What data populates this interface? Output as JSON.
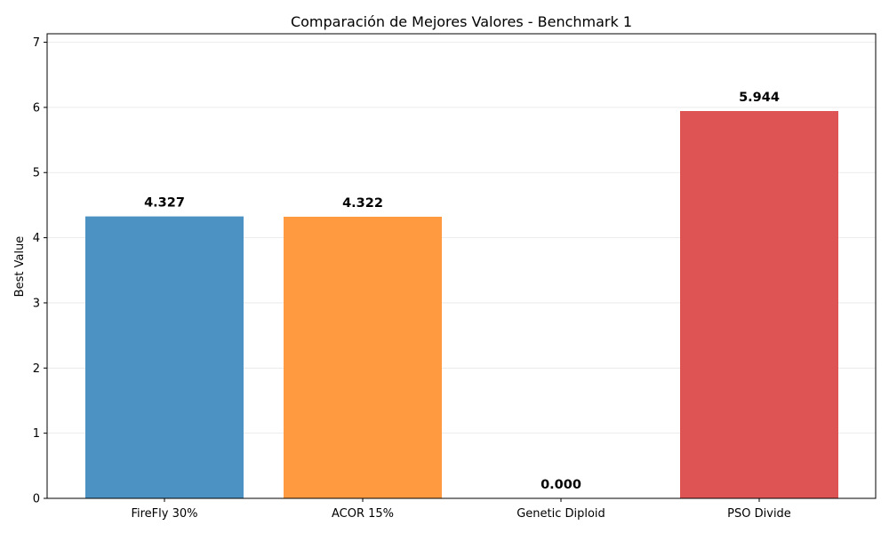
{
  "chart_data": {
    "type": "bar",
    "title": "Comparación de Mejores Valores - Benchmark 1",
    "xlabel": "",
    "ylabel": "Best Value",
    "categories": [
      "FireFly 30%",
      "ACOR 15%",
      "Genetic Diploid",
      "PSO Divide"
    ],
    "values": [
      4.327,
      4.322,
      0.0,
      5.944
    ],
    "data_labels": [
      "4.327",
      "4.322",
      "0.000",
      "5.944"
    ],
    "colors": [
      "#4c93c3",
      "#ff9a40",
      "#56b356",
      "#de5455"
    ],
    "ylim": [
      0,
      7.13
    ],
    "yticks": [
      0,
      1,
      2,
      3,
      4,
      5,
      6,
      7
    ],
    "ytick_labels": [
      "0",
      "1",
      "2",
      "3",
      "4",
      "5",
      "6",
      "7"
    ],
    "grid": "horizontal",
    "legend": "none"
  }
}
